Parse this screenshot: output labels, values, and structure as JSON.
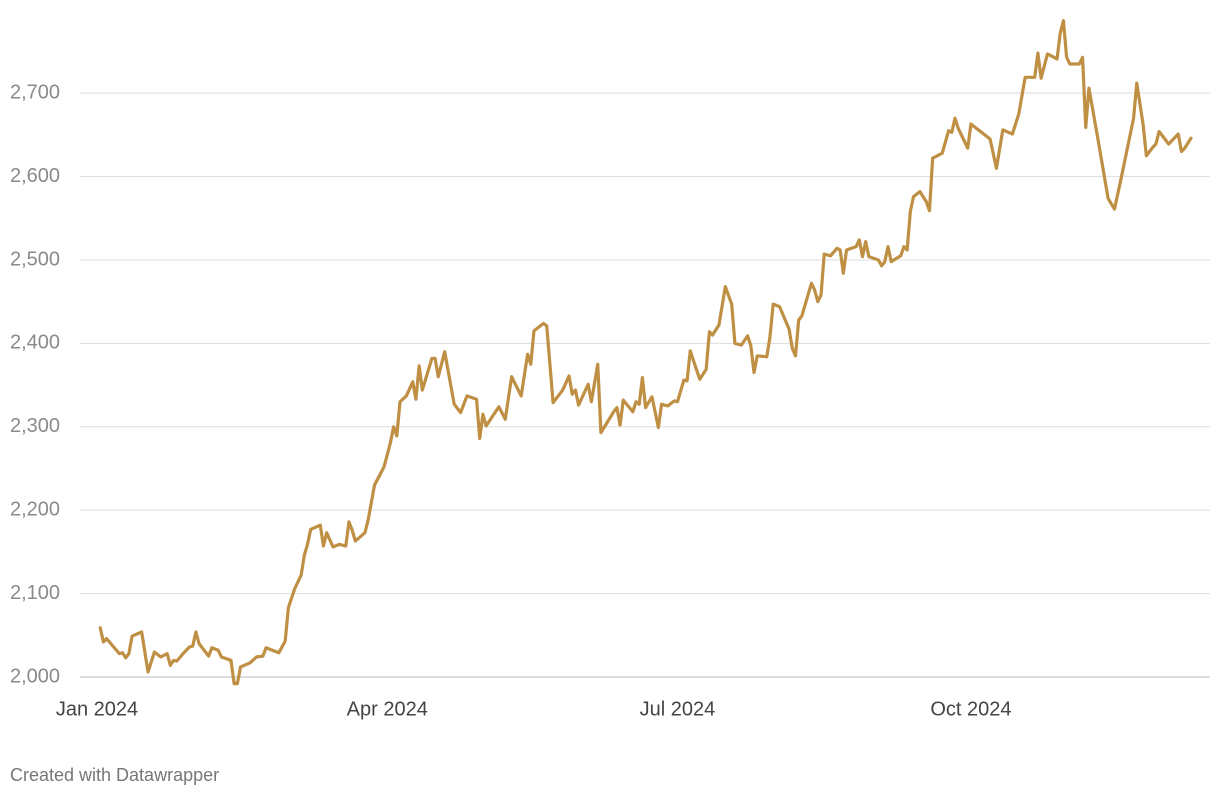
{
  "chart_data": {
    "type": "line",
    "footer": "Created with Datawrapper",
    "x": [
      1,
      2,
      3,
      5,
      7,
      8,
      9,
      10,
      11,
      14,
      16,
      18,
      20,
      22,
      23,
      24,
      25,
      27,
      29,
      30,
      31,
      32,
      35,
      36,
      38,
      39,
      42,
      43,
      44,
      45,
      48,
      50,
      52,
      53,
      55,
      57,
      59,
      60,
      62,
      64,
      65,
      66,
      67,
      70,
      71,
      72,
      74,
      76,
      78,
      79,
      80,
      81,
      84,
      85,
      87,
      90,
      92,
      93,
      94,
      95,
      97,
      99,
      100,
      101,
      102,
      105,
      106,
      107,
      109,
      112,
      114,
      116,
      119,
      120,
      121,
      122,
      126,
      128,
      130,
      133,
      135,
      136,
      137,
      140,
      141,
      143,
      146,
      148,
      149,
      150,
      151,
      154,
      155,
      157,
      158,
      162,
      163,
      164,
      165,
      168,
      169,
      170,
      171,
      172,
      174,
      176,
      177,
      179,
      181,
      182,
      184,
      185,
      186,
      188,
      189,
      191,
      192,
      193,
      195,
      197,
      199,
      200,
      202,
      204,
      205,
      206,
      207,
      210,
      211,
      212,
      214,
      217,
      218,
      219,
      220,
      221,
      224,
      225,
      226,
      227,
      228,
      230,
      232,
      233,
      234,
      235,
      238,
      239,
      240,
      241,
      242,
      245,
      246,
      247,
      248,
      249,
      252,
      253,
      254,
      255,
      256,
      258,
      260,
      261,
      262,
      265,
      267,
      268,
      269,
      270,
      273,
      274,
      280,
      282,
      284,
      287,
      289,
      291,
      294,
      295,
      296,
      298,
      301,
      302,
      303,
      304,
      305,
      308,
      309,
      310,
      311,
      314,
      317,
      319,
      321,
      325,
      326,
      328,
      329,
      331,
      332,
      333,
      335,
      336,
      339,
      340,
      341,
      343
    ],
    "series": [
      {
        "color": "#bf8f44",
        "values": [
          2059,
          2042,
          2046,
          2037,
          2028,
          2029,
          2023,
          2028,
          2049,
          2054,
          2006,
          2030,
          2024,
          2028,
          2014,
          2020,
          2019,
          2028,
          2036,
          2037,
          2054,
          2040,
          2025,
          2035,
          2032,
          2024,
          2020,
          1992,
          1992,
          2012,
          2017,
          2024,
          2025,
          2035,
          2032,
          2029,
          2043,
          2083,
          2106,
          2122,
          2146,
          2159,
          2177,
          2182,
          2157,
          2173,
          2156,
          2159,
          2157,
          2186,
          2176,
          2163,
          2173,
          2188,
          2230,
          2252,
          2281,
          2300,
          2289,
          2330,
          2337,
          2354,
          2333,
          2373,
          2344,
          2382,
          2382,
          2360,
          2390,
          2327,
          2317,
          2337,
          2333,
          2286,
          2315,
          2301,
          2324,
          2309,
          2360,
          2337,
          2387,
          2375,
          2415,
          2424,
          2421,
          2329,
          2344,
          2361,
          2339,
          2344,
          2326,
          2351,
          2330,
          2375,
          2293,
          2318,
          2323,
          2302,
          2332,
          2318,
          2330,
          2327,
          2359,
          2323,
          2336,
          2299,
          2327,
          2325,
          2331,
          2330,
          2356,
          2355,
          2391,
          2368,
          2357,
          2369,
          2414,
          2410,
          2422,
          2468,
          2447,
          2400,
          2398,
          2409,
          2397,
          2365,
          2385,
          2384,
          2408,
          2447,
          2444,
          2417,
          2394,
          2385,
          2428,
          2433,
          2472,
          2464,
          2450,
          2458,
          2507,
          2505,
          2514,
          2512,
          2484,
          2512,
          2516,
          2524,
          2504,
          2522,
          2504,
          2500,
          2493,
          2498,
          2516,
          2498,
          2505,
          2516,
          2512,
          2558,
          2576,
          2582,
          2570,
          2559,
          2622,
          2628,
          2655,
          2653,
          2670,
          2658,
          2634,
          2663,
          2645,
          2610,
          2656,
          2651,
          2675,
          2719,
          2719,
          2748,
          2718,
          2747,
          2741,
          2772,
          2787,
          2743,
          2735,
          2735,
          2743,
          2659,
          2706,
          2641,
          2574,
          2561,
          2596,
          2670,
          2712,
          2662,
          2625,
          2635,
          2639,
          2654,
          2644,
          2639,
          2651,
          2630,
          2634,
          2646
        ]
      }
    ],
    "xlim": [
      0,
      343
    ],
    "xticks": [
      {
        "value": 0,
        "label": "Jan 2024"
      },
      {
        "value": 91,
        "label": "Apr 2024"
      },
      {
        "value": 182,
        "label": "Jul 2024"
      },
      {
        "value": 274,
        "label": "Oct 2024"
      }
    ],
    "ylim": [
      1985,
      2790
    ],
    "yticks": [
      {
        "value": 2000,
        "label": "2,000"
      },
      {
        "value": 2100,
        "label": "2,100"
      },
      {
        "value": 2200,
        "label": "2,200"
      },
      {
        "value": 2300,
        "label": "2,300"
      },
      {
        "value": 2400,
        "label": "2,400"
      },
      {
        "value": 2500,
        "label": "2,500"
      },
      {
        "value": 2600,
        "label": "2,600"
      },
      {
        "value": 2700,
        "label": "2,700"
      }
    ],
    "grid": true
  }
}
